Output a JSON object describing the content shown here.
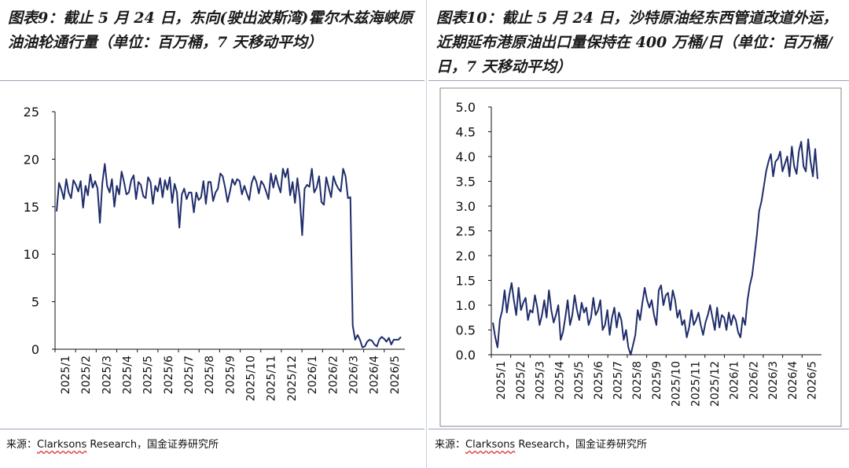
{
  "colors": {
    "line": "#1f2d6b",
    "axis": "#111111",
    "border": "#9aa6b8"
  },
  "left": {
    "title": "图表9：截止 5 月 24 日，东向(驶出波斯湾)霍尔木兹海峡原油油轮通行量（单位：百万桶，7 天移动平均）",
    "source_prefix": "来源：",
    "source_brand": "Clarksons",
    "source_rest": " Research，国金证券研究所"
  },
  "right": {
    "title": "图表10：截止 5 月 24 日，沙特原油经东西管道改道外运，近期延布港原油出口量保持在 400 万桶/日（单位：百万桶/日，7 天移动平均）",
    "source_prefix": "来源：",
    "source_brand": "Clarksons",
    "source_rest": " Research，国金证券研究所"
  },
  "chart_data": [
    {
      "type": "line",
      "title": "",
      "xlabel": "",
      "ylabel": "",
      "ylim": [
        0,
        25
      ],
      "yticks": [
        "0",
        "5",
        "10",
        "15",
        "20",
        "25"
      ],
      "xticks": [
        "2025/1",
        "2025/2",
        "2025/3",
        "2025/4",
        "2025/5",
        "2025/6",
        "2025/7",
        "2025/8",
        "2025/9",
        "2025/10",
        "2025/11",
        "2025/12",
        "2026/1",
        "2026/2",
        "2026/3",
        "2026/4",
        "2026/5"
      ],
      "grid": false,
      "series": [
        {
          "values": [
            14.5,
            17.5,
            16.8,
            15.8,
            17.9,
            16.5,
            15.9,
            17.8,
            17.3,
            16.6,
            17.7,
            14.9,
            17.2,
            16.2,
            18.4,
            17.0,
            17.7,
            16.9,
            13.3,
            17.5,
            19.5,
            17.2,
            16.5,
            17.9,
            15.0,
            17.2,
            16.3,
            18.7,
            17.6,
            16.3,
            16.5,
            17.8,
            18.3,
            15.8,
            17.6,
            17.3,
            16.1,
            15.9,
            18.1,
            17.6,
            15.3,
            17.2,
            16.6,
            18.0,
            16.0,
            17.8,
            16.8,
            18.1,
            15.4,
            17.4,
            16.5,
            12.8,
            16.3,
            16.9,
            15.8,
            16.5,
            16.5,
            14.4,
            16.5,
            15.7,
            16.0,
            17.7,
            15.3,
            17.6,
            17.6,
            15.6,
            16.5,
            16.9,
            18.5,
            18.2,
            17.0,
            15.5,
            16.6,
            17.9,
            17.3,
            17.9,
            17.7,
            16.3,
            17.2,
            16.4,
            15.7,
            17.5,
            18.2,
            17.6,
            16.4,
            17.7,
            17.3,
            16.6,
            15.8,
            18.5,
            17.0,
            18.3,
            17.3,
            16.5,
            19.0,
            18.1,
            19.0,
            16.2,
            17.6,
            15.4,
            18.0,
            15.9,
            12.0,
            16.9,
            17.3,
            17.1,
            19.0,
            16.5,
            17.0,
            18.2,
            15.5,
            15.2,
            18.1,
            17.0,
            16.0,
            18.2,
            17.4,
            16.9,
            16.6,
            19.0,
            18.2,
            15.9,
            16.0,
            2.5,
            1.0,
            1.5,
            1.0,
            0.2,
            0.3,
            0.8,
            1.0,
            0.9,
            0.5,
            0.3,
            1.0,
            1.3,
            1.1,
            0.8,
            1.2,
            0.5,
            1.0,
            1.0,
            1.0,
            1.3
          ]
        }
      ]
    },
    {
      "type": "line",
      "title": "",
      "xlabel": "",
      "ylabel": "",
      "ylim": [
        0,
        5
      ],
      "yticks": [
        "0.0",
        "0.5",
        "1.0",
        "1.5",
        "2.0",
        "2.5",
        "3.0",
        "3.5",
        "4.0",
        "4.5",
        "5.0"
      ],
      "xticks": [
        "2025/1",
        "2025/2",
        "2025/3",
        "2025/4",
        "2025/5",
        "2025/6",
        "2025/7",
        "2025/8",
        "2025/9",
        "2025/10",
        "2025/11",
        "2025/12",
        "2026/1",
        "2026/2",
        "2026/3",
        "2026/4",
        "2026/5"
      ],
      "grid": false,
      "series": [
        {
          "values": [
            0.65,
            0.35,
            0.15,
            0.7,
            0.9,
            1.3,
            0.85,
            1.2,
            1.45,
            1.1,
            0.8,
            1.35,
            0.9,
            1.05,
            1.15,
            0.7,
            0.9,
            0.85,
            1.2,
            0.95,
            0.6,
            0.8,
            1.1,
            0.75,
            1.3,
            0.9,
            0.65,
            0.8,
            1.0,
            0.3,
            0.45,
            0.75,
            1.1,
            0.6,
            0.8,
            1.2,
            0.9,
            0.7,
            1.05,
            0.85,
            0.95,
            0.6,
            0.75,
            1.15,
            0.8,
            0.9,
            1.1,
            0.5,
            0.6,
            0.9,
            0.4,
            0.75,
            0.95,
            0.55,
            0.85,
            0.7,
            0.3,
            0.5,
            0.15,
            0.0,
            0.2,
            0.4,
            0.9,
            0.7,
            1.05,
            1.35,
            1.1,
            0.95,
            1.1,
            0.8,
            0.6,
            1.3,
            1.4,
            1.0,
            1.2,
            1.25,
            0.9,
            1.3,
            1.1,
            0.75,
            0.9,
            0.6,
            0.7,
            0.35,
            0.55,
            0.9,
            0.6,
            0.7,
            0.85,
            0.6,
            0.4,
            0.65,
            0.8,
            1.0,
            0.75,
            0.5,
            0.95,
            0.55,
            0.8,
            0.75,
            0.5,
            0.85,
            0.6,
            0.8,
            0.7,
            0.45,
            0.35,
            0.75,
            0.6,
            1.1,
            1.4,
            1.6,
            2.0,
            2.4,
            2.9,
            3.1,
            3.4,
            3.7,
            3.9,
            4.05,
            3.6,
            3.9,
            3.95,
            4.1,
            3.7,
            3.85,
            4.0,
            3.6,
            4.2,
            3.8,
            3.65,
            4.1,
            4.3,
            3.8,
            3.7,
            4.35,
            3.9,
            3.6,
            4.15,
            3.55
          ]
        }
      ]
    }
  ]
}
